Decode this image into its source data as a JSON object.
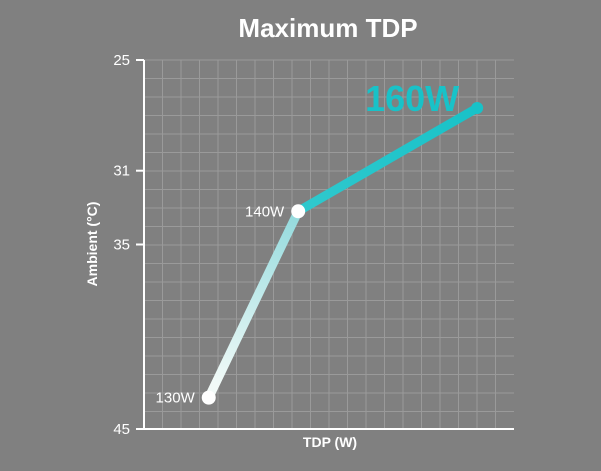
{
  "chart_data": {
    "type": "line",
    "title": "Maximum TDP",
    "xlabel": "TDP (W)",
    "ylabel": "Ambient (°C)",
    "ylim": [
      45,
      25
    ],
    "yticks": [
      "25",
      "31",
      "35",
      "45"
    ],
    "y_tick_values": [
      25,
      31,
      35,
      45
    ],
    "grid": true,
    "series": [
      {
        "values": [
          {
            "x": 130,
            "y": 43.3,
            "label": "130W"
          },
          {
            "x": 140,
            "y": 33.2,
            "label": "140W"
          },
          {
            "x": 160,
            "y": 27.6,
            "label": "160W"
          }
        ]
      }
    ],
    "colors": {
      "line_start": "#f2faf8",
      "line_mid": "#7fd8dc",
      "line_end": "#18c2c8",
      "highlight_text": "#18c2c8"
    }
  }
}
